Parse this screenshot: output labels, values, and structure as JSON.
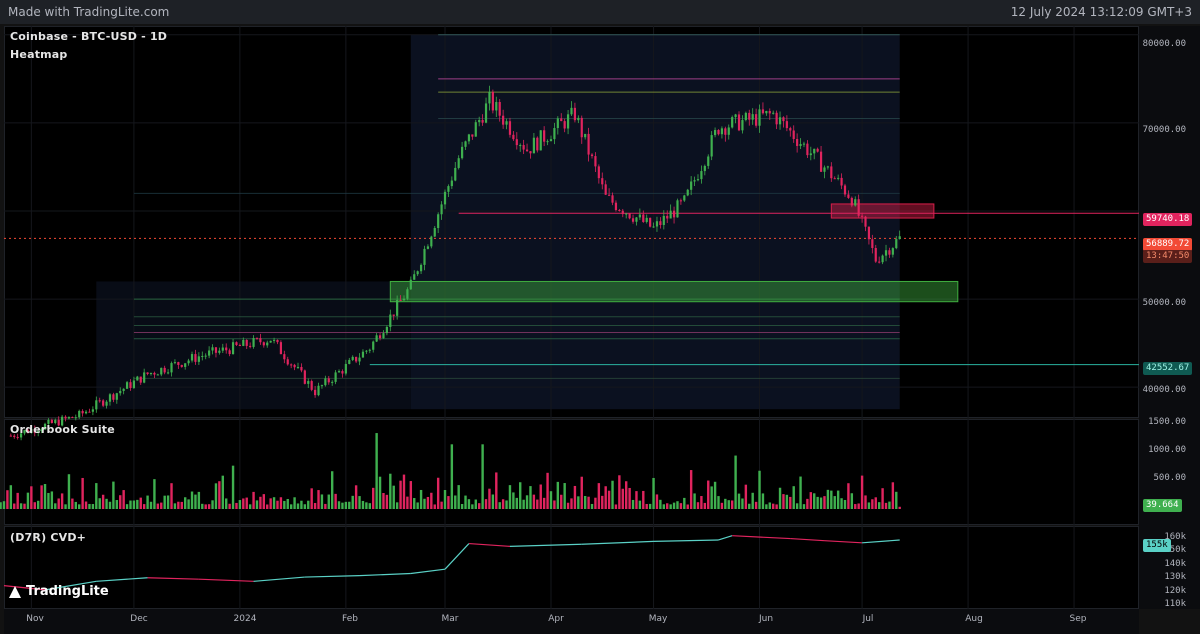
{
  "topbar": {
    "made_with": "Made with TradingLite.com",
    "timestamp": "12 July 2024 13:12:09 GMT+3"
  },
  "main_panel": {
    "title": "Coinbase - BTC-USD - 1D",
    "subtitle": "Heatmap"
  },
  "orderbook_panel": {
    "title": "Orderbook Suite"
  },
  "cvd_panel": {
    "title": "(D7R) CVD+"
  },
  "logo_text": "TradingLite",
  "price_axis": {
    "ticks": [
      "80000.00",
      "70000.00",
      "50000.00",
      "40000.00"
    ]
  },
  "price_tags": {
    "resistance": "59740.18",
    "last": "56889.72",
    "countdown": "13:47:50",
    "support": "42552.67"
  },
  "volume_axis": {
    "ticks": [
      "1500.00",
      "1000.00",
      "500.00"
    ],
    "last": "39.664"
  },
  "cvd_axis": {
    "ticks": [
      "160k",
      "150k",
      "140k",
      "130k",
      "120k",
      "110k"
    ],
    "last": "155k"
  },
  "time_axis": [
    "Nov",
    "Dec",
    "2024",
    "Feb",
    "Mar",
    "Apr",
    "May",
    "Jun",
    "Jul",
    "Aug",
    "Sep"
  ],
  "colors": {
    "up": "#3fb04f",
    "down": "#e0245e",
    "support_zone": "#3fae3f",
    "resistance_zone": "#d81f4a",
    "cvd_line": "#5ad1c6"
  },
  "chart_data": [
    {
      "type": "candlestick",
      "title": "Coinbase - BTC-USD - 1D",
      "subtitle": "Heatmap",
      "ylim": [
        36500,
        81000
      ],
      "x_range": [
        "2023-10-24",
        "2024-09-20"
      ],
      "monthly_path": [
        {
          "date": "2023-10-26",
          "price": 34500
        },
        {
          "date": "2023-11-15",
          "price": 36800
        },
        {
          "date": "2023-12-05",
          "price": 41500
        },
        {
          "date": "2023-12-20",
          "price": 43500
        },
        {
          "date": "2024-01-10",
          "price": 45500
        },
        {
          "date": "2024-01-23",
          "price": 39500
        },
        {
          "date": "2024-02-08",
          "price": 44500
        },
        {
          "date": "2024-02-20",
          "price": 51500
        },
        {
          "date": "2024-03-05",
          "price": 66000
        },
        {
          "date": "2024-03-14",
          "price": 72500
        },
        {
          "date": "2024-03-25",
          "price": 67000
        },
        {
          "date": "2024-04-08",
          "price": 71000
        },
        {
          "date": "2024-04-17",
          "price": 61500
        },
        {
          "date": "2024-05-01",
          "price": 58000
        },
        {
          "date": "2024-05-10",
          "price": 61000
        },
        {
          "date": "2024-05-20",
          "price": 69500
        },
        {
          "date": "2024-06-05",
          "price": 71000
        },
        {
          "date": "2024-06-20",
          "price": 65000
        },
        {
          "date": "2024-06-28",
          "price": 61500
        },
        {
          "date": "2024-07-05",
          "price": 54500
        },
        {
          "date": "2024-07-12",
          "price": 56889.72
        }
      ],
      "levels": {
        "resistance": 59740.18,
        "last": 56889.72,
        "support": 42552.67
      },
      "zones": [
        {
          "kind": "support",
          "low": 49700,
          "high": 52000,
          "from": "2024-02-14",
          "to": "2024-07-29"
        },
        {
          "kind": "resistance",
          "low": 59200,
          "high": 60800,
          "from": "2024-06-22",
          "to": "2024-07-22"
        }
      ]
    },
    {
      "type": "bar",
      "title": "Orderbook Suite",
      "ylim": [
        0,
        1600
      ],
      "last_value": 39.664,
      "notable_values": [
        {
          "date": "2024-02-10",
          "value": 1350
        },
        {
          "date": "2024-03-03",
          "value": 1150
        },
        {
          "date": "2024-03-12",
          "value": 1150
        },
        {
          "date": "2024-05-25",
          "value": 950
        }
      ]
    },
    {
      "type": "line",
      "title": "(D7R) CVD+",
      "ylim": [
        108000,
        162000
      ],
      "last_value": "155k",
      "points": [
        {
          "date": "2023-10-24",
          "value": 123000
        },
        {
          "date": "2023-11-05",
          "value": 120000
        },
        {
          "date": "2023-11-20",
          "value": 126000
        },
        {
          "date": "2023-12-05",
          "value": 128500
        },
        {
          "date": "2023-12-20",
          "value": 127500
        },
        {
          "date": "2024-01-05",
          "value": 126000
        },
        {
          "date": "2024-01-20",
          "value": 129000
        },
        {
          "date": "2024-02-05",
          "value": 130000
        },
        {
          "date": "2024-02-20",
          "value": 131500
        },
        {
          "date": "2024-03-01",
          "value": 134500
        },
        {
          "date": "2024-03-08",
          "value": 152500
        },
        {
          "date": "2024-03-20",
          "value": 150500
        },
        {
          "date": "2024-04-10",
          "value": 152000
        },
        {
          "date": "2024-05-01",
          "value": 154000
        },
        {
          "date": "2024-05-20",
          "value": 155000
        },
        {
          "date": "2024-05-24",
          "value": 158000
        },
        {
          "date": "2024-06-10",
          "value": 156000
        },
        {
          "date": "2024-06-20",
          "value": 154500
        },
        {
          "date": "2024-07-01",
          "value": 153000
        },
        {
          "date": "2024-07-12",
          "value": 155000
        }
      ]
    }
  ]
}
